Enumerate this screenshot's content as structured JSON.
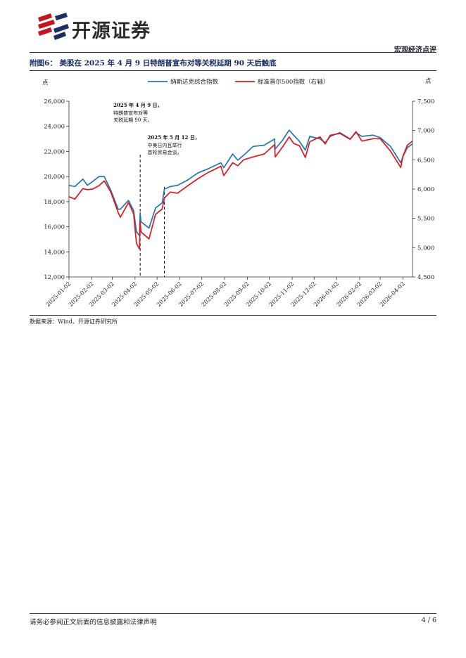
{
  "header": {
    "logo_text": "开源证券",
    "section_label": "宏观经济点评"
  },
  "figure": {
    "caption": "附图6：  美股在 2025 年 4 月 9 日特朗普宣布对等关税延期 90 天后触底"
  },
  "source_note": "数据来源：Wind、开源证券研究所",
  "footer": {
    "disclaimer": "请务必参阅正文后面的信息披露和法律声明",
    "page": "4 / 6"
  },
  "colors": {
    "nasdaq": "#1f77b4",
    "sp500": "#e8141b",
    "brand_red": "#c4161c",
    "brand_navy": "#1b2f66"
  },
  "chart_data": {
    "type": "line",
    "left_axis_unit": "点",
    "right_axis_unit": "点",
    "left_ylim": [
      12000,
      26000
    ],
    "left_yticks": [
      "12,000",
      "14,000",
      "16,000",
      "18,000",
      "20,000",
      "22,000",
      "24,000",
      "26,000"
    ],
    "right_ylim": [
      4500,
      7500
    ],
    "right_yticks": [
      "4,500",
      "5,000",
      "5,500",
      "6,000",
      "6,500",
      "7,000",
      "7,500"
    ],
    "x_range": [
      "2025-01-02",
      "2026-04-15"
    ],
    "x_ticks": [
      "2025-01-02",
      "2025-02-02",
      "2025-03-02",
      "2025-04-02",
      "2025-05-02",
      "2025-06-02",
      "2025-07-02",
      "2025-08-02",
      "2025-09-02",
      "2025-10-02",
      "2025-11-02",
      "2025-12-02",
      "2026-01-02",
      "2026-02-02",
      "2026-03-02",
      "2026-04-02"
    ],
    "legend_position": "top",
    "series": [
      {
        "name": "纳斯达克综合指数",
        "axis": "left",
        "x": [
          "2025-01-02",
          "2025-01-10",
          "2025-01-21",
          "2025-01-27",
          "2025-02-03",
          "2025-02-12",
          "2025-02-19",
          "2025-02-28",
          "2025-03-10",
          "2025-03-13",
          "2025-03-24",
          "2025-03-31",
          "2025-04-04",
          "2025-04-08",
          "2025-04-09",
          "2025-04-10",
          "2025-04-21",
          "2025-04-30",
          "2025-05-09",
          "2025-05-12",
          "2025-05-20",
          "2025-05-30",
          "2025-06-12",
          "2025-06-27",
          "2025-07-10",
          "2025-07-28",
          "2025-08-01",
          "2025-08-13",
          "2025-08-20",
          "2025-08-28",
          "2025-09-10",
          "2025-09-25",
          "2025-10-09",
          "2025-10-10",
          "2025-10-20",
          "2025-10-29",
          "2025-11-04",
          "2025-11-12",
          "2025-11-20",
          "2025-11-26",
          "2025-12-10",
          "2025-12-17",
          "2025-12-24",
          "2026-01-06",
          "2026-01-20",
          "2026-01-28",
          "2026-02-05",
          "2026-02-20",
          "2026-03-02",
          "2026-03-16",
          "2026-03-30",
          "2026-04-02",
          "2026-04-08",
          "2026-04-15"
        ],
        "values": [
          19300,
          19200,
          19800,
          19300,
          19600,
          20000,
          20000,
          18900,
          17400,
          17400,
          18100,
          17300,
          15600,
          15300,
          17100,
          16400,
          15900,
          17500,
          17900,
          19000,
          19200,
          19300,
          19700,
          20300,
          20600,
          21100,
          20700,
          21800,
          21300,
          21700,
          22400,
          22500,
          23000,
          22200,
          22900,
          23700,
          23300,
          22800,
          22100,
          23200,
          23000,
          22700,
          23200,
          23500,
          23000,
          23500,
          23200,
          23300,
          23100,
          22400,
          21100,
          21600,
          22300,
          22600
        ]
      },
      {
        "name": "标准普尔500指数（右轴）",
        "axis": "right",
        "x": [
          "2025-01-02",
          "2025-01-10",
          "2025-01-21",
          "2025-01-27",
          "2025-02-03",
          "2025-02-12",
          "2025-02-19",
          "2025-02-28",
          "2025-03-10",
          "2025-03-13",
          "2025-03-24",
          "2025-03-31",
          "2025-04-04",
          "2025-04-08",
          "2025-04-09",
          "2025-04-10",
          "2025-04-21",
          "2025-04-30",
          "2025-05-09",
          "2025-05-12",
          "2025-05-20",
          "2025-05-30",
          "2025-06-12",
          "2025-06-27",
          "2025-07-10",
          "2025-07-28",
          "2025-08-01",
          "2025-08-13",
          "2025-08-20",
          "2025-08-28",
          "2025-09-10",
          "2025-09-25",
          "2025-10-09",
          "2025-10-10",
          "2025-10-20",
          "2025-10-29",
          "2025-11-04",
          "2025-11-12",
          "2025-11-20",
          "2025-11-26",
          "2025-12-10",
          "2025-12-17",
          "2025-12-24",
          "2026-01-06",
          "2026-01-20",
          "2026-01-28",
          "2026-02-05",
          "2026-02-20",
          "2026-03-02",
          "2026-03-16",
          "2026-03-30",
          "2026-04-02",
          "2026-04-08",
          "2026-04-15"
        ],
        "values": [
          5870,
          5830,
          6010,
          5990,
          6000,
          6060,
          6140,
          5950,
          5600,
          5520,
          5770,
          5580,
          5070,
          4980,
          5450,
          5270,
          5150,
          5570,
          5660,
          5850,
          5950,
          5930,
          6050,
          6180,
          6280,
          6390,
          6230,
          6450,
          6400,
          6500,
          6550,
          6600,
          6760,
          6550,
          6720,
          6890,
          6780,
          6740,
          6540,
          6810,
          6890,
          6770,
          6920,
          6950,
          6850,
          6980,
          6820,
          6860,
          6860,
          6650,
          6370,
          6560,
          6750,
          6820
        ]
      }
    ],
    "annotations": [
      {
        "date": "2025-04-09",
        "title": "2025 年 4 月 9 日，",
        "lines": [
          "特朗普宣布对等",
          "关税延期 90 天。"
        ]
      },
      {
        "date": "2025-05-12",
        "title": "2025 年 5 月 12 日，",
        "lines": [
          "中美日内瓦举行",
          "首轮贸易会谈。"
        ]
      }
    ]
  }
}
